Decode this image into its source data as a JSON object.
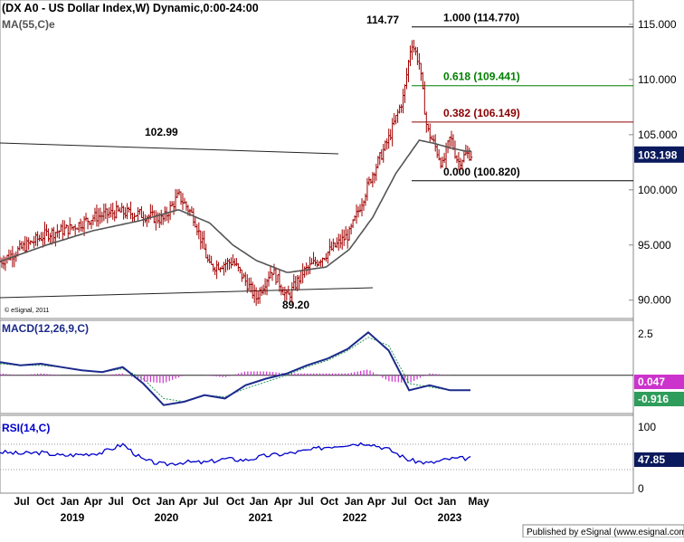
{
  "main": {
    "title": "(DX A0 - US Dollar Index,W) Dynamic,0:00-24:00",
    "ma_label": "MA(55,C)e",
    "copyright": "© eSignal, 2011",
    "footer": "Published by eSignal (www.esignal.com)"
  },
  "macd": {
    "label": "MACD(12,26,9,C)",
    "line_value": "0.047",
    "signal_value": "-0.916"
  },
  "rsi": {
    "label": "RSI(14,C)",
    "value": "47.85"
  },
  "colors": {
    "price_bar": "#a00000",
    "ma": "#555555",
    "macd_line": "#1c2a8c",
    "signal_line": "#2e9c5a",
    "histogram": "#cc33cc",
    "rsi_line": "#0000cc",
    "fib_1": "#000000",
    "fib_618": "#008000",
    "fib_382": "#8b0000",
    "price_badge": "#0b1a5c",
    "macd_badge": "#cc33cc",
    "signal_badge": "#2e9c5a",
    "rsi_badge": "#0b1a5c"
  },
  "chart_data": [
    {
      "type": "line",
      "title": "(DX A0 - US Dollar Index,W) Dynamic,0:00-24:00",
      "ylim": [
        88.5,
        116.8
      ],
      "y_ticks": [
        "115.000",
        "110.000",
        "105.000",
        "100.000",
        "95.000",
        "90.000"
      ],
      "last_price": "103.198",
      "x_ticks": [
        "Jul",
        "Oct",
        "Jan",
        "Apr",
        "Jul",
        "Oct",
        "Jan",
        "Apr",
        "Jul",
        "Oct",
        "Jan",
        "Apr",
        "Jul",
        "Oct",
        "Jan",
        "Apr",
        "Jul",
        "Oct",
        "Jan",
        "May"
      ],
      "x_years": [
        "2019",
        "2020",
        "2021",
        "2022",
        "2023"
      ],
      "series": [
        {
          "name": "US Dollar Index",
          "x": [
            "2018-04",
            "2018-07",
            "2018-10",
            "2019-01",
            "2019-04",
            "2019-07",
            "2019-10",
            "2020-01",
            "2020-03",
            "2020-05",
            "2020-07",
            "2020-10",
            "2021-01",
            "2021-03",
            "2021-05",
            "2021-07",
            "2021-10",
            "2022-01",
            "2022-04",
            "2022-06",
            "2022-08",
            "2022-09",
            "2022-10",
            "2022-11",
            "2022-12",
            "2023-01",
            "2023-02",
            "2023-03",
            "2023-04"
          ],
          "y": [
            93.5,
            94.8,
            96.0,
            96.5,
            97.5,
            98.0,
            97.8,
            97.3,
            99.5,
            97.5,
            93.0,
            93.5,
            90.2,
            92.8,
            90.2,
            92.5,
            94.2,
            96.0,
            101.5,
            104.5,
            108.5,
            113.5,
            111.5,
            105.5,
            104.0,
            102.2,
            104.8,
            102.5,
            103.2
          ]
        },
        {
          "name": "MA(55,C)e",
          "x": [
            "2018-04",
            "2018-10",
            "2019-04",
            "2019-10",
            "2020-03",
            "2020-07",
            "2020-10",
            "2021-01",
            "2021-05",
            "2021-10",
            "2022-01",
            "2022-04",
            "2022-07",
            "2022-10",
            "2022-12",
            "2023-02",
            "2023-04"
          ],
          "y": [
            93.5,
            95.0,
            96.3,
            97.2,
            98.2,
            97.0,
            95.0,
            93.6,
            92.5,
            93.0,
            94.6,
            97.5,
            101.5,
            104.5,
            104.2,
            103.8,
            103.5
          ]
        }
      ],
      "annotations": [
        {
          "text": "102.99"
        },
        {
          "text": "89.20"
        },
        {
          "text": "114.77"
        },
        {
          "text": "1.000 (114.770)"
        },
        {
          "text": "0.618 (109.441)"
        },
        {
          "text": "0.382 (106.149)"
        },
        {
          "text": "0.000 (100.820)"
        }
      ]
    },
    {
      "type": "line",
      "title": "MACD(12,26,9,C)",
      "y_ticks": [
        "2.5"
      ],
      "series": [
        {
          "name": "MACD",
          "y": [
            0.8,
            0.6,
            0.7,
            0.5,
            0.3,
            0.2,
            0.5,
            -0.5,
            -1.8,
            -1.6,
            -1.2,
            -1.4,
            -0.6,
            -0.2,
            0.1,
            0.6,
            1.0,
            1.6,
            2.6,
            1.5,
            -0.9,
            -0.6,
            -0.9,
            -0.9
          ]
        },
        {
          "name": "Signal",
          "y": [
            0.7,
            0.6,
            0.6,
            0.5,
            0.3,
            0.2,
            0.4,
            -0.2,
            -1.4,
            -1.6,
            -1.2,
            -1.3,
            -0.8,
            -0.4,
            0.0,
            0.5,
            0.9,
            1.5,
            2.3,
            1.8,
            -0.5,
            -0.7,
            -0.9,
            -0.9
          ]
        }
      ]
    },
    {
      "type": "line",
      "title": "RSI(14,C)",
      "ylim": [
        0,
        100
      ],
      "y_ticks": [
        "100",
        "0"
      ],
      "series": [
        {
          "name": "RSI",
          "y": [
            58,
            55,
            57,
            52,
            54,
            57,
            70,
            45,
            38,
            42,
            41,
            47,
            45,
            52,
            55,
            60,
            66,
            70,
            72,
            62,
            45,
            40,
            47,
            48
          ]
        }
      ]
    }
  ]
}
